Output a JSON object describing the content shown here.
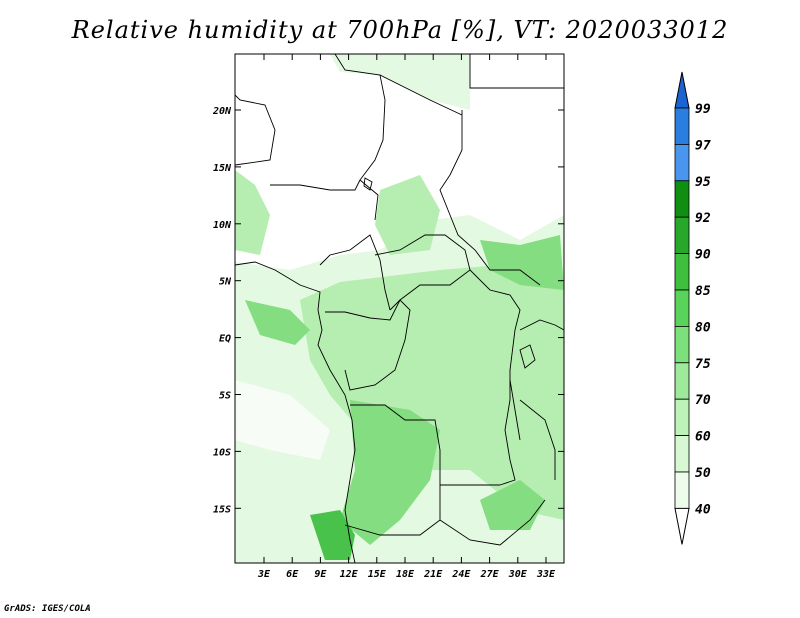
{
  "title": "Relative humidity at 700hPa [%], VT: 2020033012",
  "credit": "GrADS: IGES/COLA",
  "map": {
    "lon_ticks": [
      "3E",
      "6E",
      "9E",
      "12E",
      "15E",
      "18E",
      "21E",
      "24E",
      "27E",
      "30E",
      "33E"
    ],
    "lat_ticks": [
      "20N",
      "15N",
      "10N",
      "5N",
      "EQ",
      "5S",
      "10S",
      "15S"
    ]
  },
  "colorbar": {
    "labels": [
      "99",
      "97",
      "95",
      "92",
      "90",
      "85",
      "80",
      "75",
      "70",
      "60",
      "50",
      "40"
    ],
    "colors": [
      "#1a64d2",
      "#2a7ee0",
      "#4a96ee",
      "#0f8e12",
      "#27a82b",
      "#3ebf3e",
      "#5ad35a",
      "#7ce17a",
      "#9ee99a",
      "#bdf2b8",
      "#d8f8d4",
      "#eefcec",
      "#ffffff"
    ]
  },
  "field_colors": {
    "background": "#ffffff",
    "light": "#e4f9e1",
    "medium": "#b6edb0",
    "high": "#84dd80",
    "peak": "#49c24b"
  }
}
